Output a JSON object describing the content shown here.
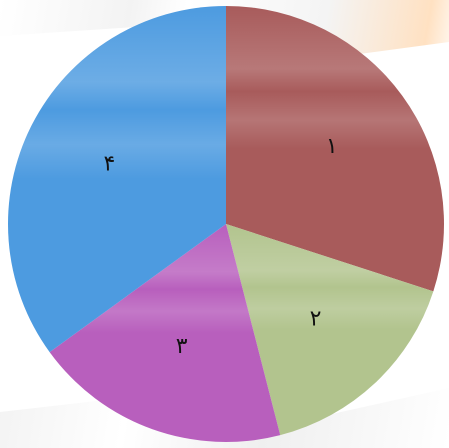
{
  "chart_data": {
    "type": "pie",
    "title": "",
    "categories": [
      "۱",
      "۲",
      "۳",
      "۴"
    ],
    "values": [
      30,
      16,
      19,
      35
    ],
    "colors": [
      "#a85b5b",
      "#b2c48e",
      "#b85fbd",
      "#4d9be0"
    ],
    "legend": "none",
    "start_angle_deg": 0,
    "direction": "clockwise"
  }
}
